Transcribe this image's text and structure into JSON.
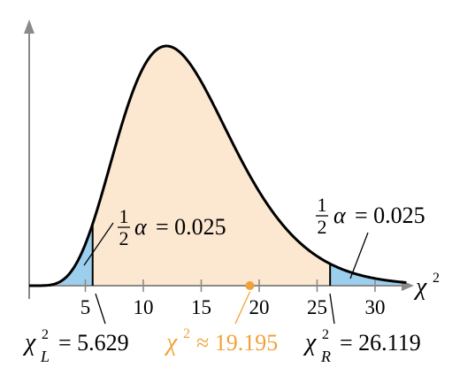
{
  "chart_data": {
    "type": "area",
    "xlabel": "χ",
    "xlabel_sup": "2",
    "x_ticks": [
      "5",
      "10",
      "15",
      "20",
      "25",
      "30"
    ],
    "left_tail": {
      "area_frac": "1",
      "area_den": "2",
      "area_alpha": "α",
      "area_value": "= 0.025",
      "critical_value": 5.629,
      "critical_symbol": "χ",
      "critical_sup": "2",
      "critical_sub": "L",
      "critical_text": "= 5.629"
    },
    "right_tail": {
      "area_frac": "1",
      "area_den": "2",
      "area_alpha": "α",
      "area_value": "= 0.025",
      "critical_value": 26.119,
      "critical_symbol": "χ",
      "critical_sup": "2",
      "critical_sub": "R",
      "critical_text": "= 26.119"
    },
    "test_statistic": {
      "value": 19.195,
      "symbol": "χ",
      "sup": "2",
      "text": "≈ 19.195"
    },
    "colors": {
      "body_fill": "#fce8d0",
      "tail_fill": "#9ccfee",
      "curve": "#000000",
      "axis": "#8a8a8a",
      "test_stat": "#f0a23a"
    }
  }
}
